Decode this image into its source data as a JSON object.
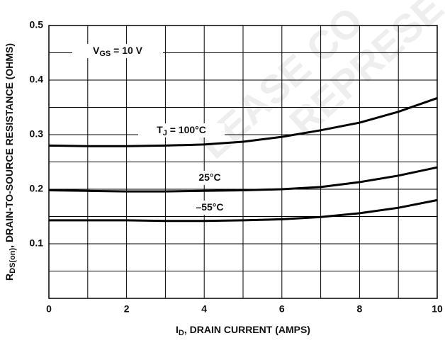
{
  "chart_data": {
    "type": "line",
    "x_label": [
      {
        "text": "I"
      },
      {
        "text": "D",
        "sub": true
      },
      {
        "text": ", DRAIN CURRENT (AMPS)"
      }
    ],
    "y_label": [
      {
        "text": "R"
      },
      {
        "text": "DS(on)",
        "sub": true
      },
      {
        "text": ", DRAIN-TO-SOURCE RESISTANCE (OHMS)"
      }
    ],
    "annotation": [
      {
        "text": "V"
      },
      {
        "text": "GS",
        "sub": true
      },
      {
        "text": " = 10 V"
      }
    ],
    "watermark": [
      "LEASE CO",
      "REPRESE"
    ],
    "x": [
      0,
      1,
      2,
      3,
      4,
      5,
      6,
      7,
      8,
      9,
      10
    ],
    "series": [
      {
        "label": [
          {
            "text": "T"
          },
          {
            "text": "J",
            "sub": true
          },
          {
            "text": " = 100°C"
          }
        ],
        "color": "#000000",
        "values": [
          0.28,
          0.279,
          0.279,
          0.28,
          0.282,
          0.287,
          0.296,
          0.308,
          0.322,
          0.342,
          0.367
        ]
      },
      {
        "label": [
          {
            "text": "25°C"
          }
        ],
        "color": "#000000",
        "values": [
          0.198,
          0.197,
          0.196,
          0.196,
          0.197,
          0.198,
          0.2,
          0.204,
          0.213,
          0.225,
          0.24
        ]
      },
      {
        "label": [
          {
            "text": "–55°C"
          }
        ],
        "color": "#000000",
        "values": [
          0.143,
          0.143,
          0.143,
          0.142,
          0.142,
          0.143,
          0.145,
          0.149,
          0.156,
          0.166,
          0.18
        ]
      }
    ],
    "xlim": [
      0,
      10
    ],
    "ylim": [
      0,
      0.5
    ],
    "xticks": [
      0,
      2,
      4,
      6,
      8,
      10
    ],
    "yticks": [
      0.1,
      0.2,
      0.3,
      0.4,
      0.5
    ],
    "xgrid": [
      1,
      2,
      3,
      4,
      5,
      6,
      7,
      8,
      9
    ],
    "ygrid": [
      0.05,
      0.1,
      0.15,
      0.2,
      0.25,
      0.3,
      0.35,
      0.4,
      0.45
    ],
    "grid": true
  }
}
